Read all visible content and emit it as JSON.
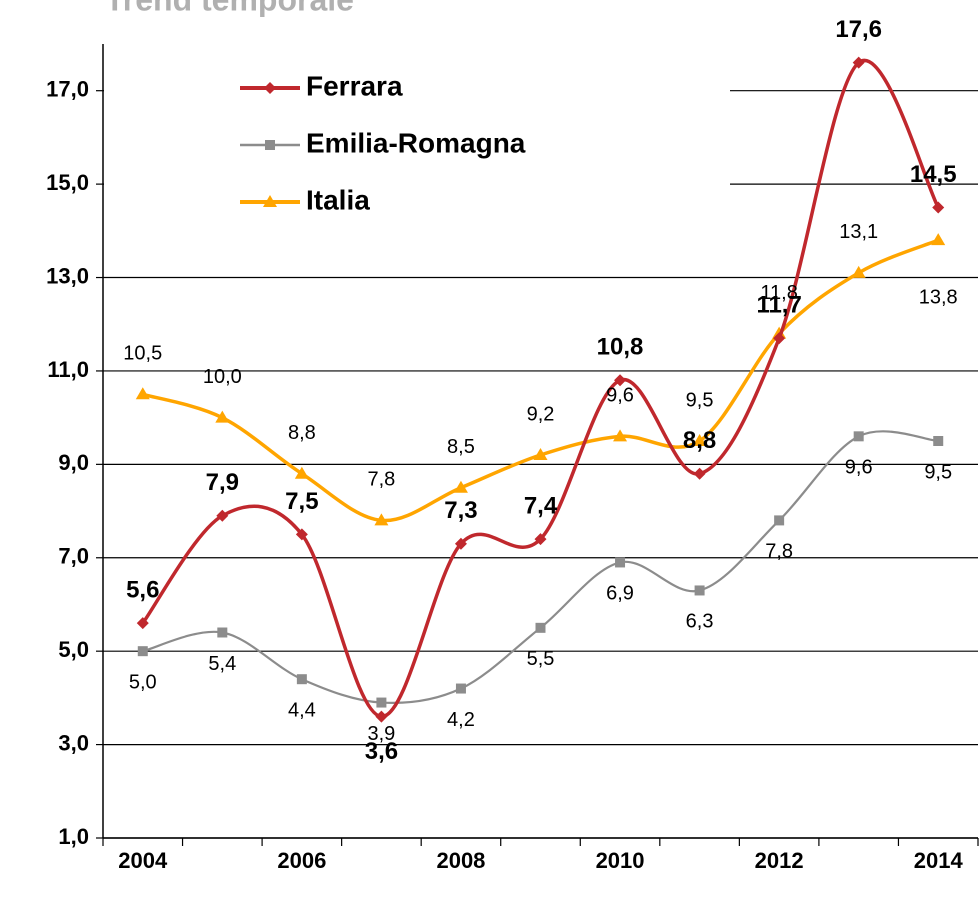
{
  "chart_data": {
    "type": "line",
    "title": "Trend temporale",
    "categories": [
      "2004",
      null,
      "2006",
      null,
      "2008",
      null,
      "2010",
      null,
      "2012",
      null,
      "2014"
    ],
    "series": [
      {
        "name": "Ferrara",
        "color": "#c0282d",
        "marker": "diamond",
        "values": [
          5.6,
          7.9,
          7.5,
          3.6,
          7.3,
          7.4,
          10.8,
          8.8,
          11.7,
          17.6,
          14.5
        ],
        "value_labels": [
          "5,6",
          "7,9",
          "7,5",
          "3,6",
          "7,3",
          "7,4",
          "10,8",
          "8,8",
          "11,7",
          "17,6",
          "14,5"
        ]
      },
      {
        "name": "Emilia-Romagna",
        "color": "#8c8c8c",
        "marker": "square",
        "values": [
          5.0,
          5.4,
          4.4,
          3.9,
          4.2,
          5.5,
          6.9,
          6.3,
          7.8,
          9.6,
          9.5
        ],
        "value_labels": [
          "5,0",
          "5,4",
          "4,4",
          "3,9",
          "4,2",
          "5,5",
          "6,9",
          "6,3",
          "7,8",
          "9,6",
          "9,5"
        ]
      },
      {
        "name": "Italia",
        "color": "#ffa500",
        "marker": "triangle",
        "values": [
          10.5,
          10.0,
          8.8,
          7.8,
          8.5,
          9.2,
          9.6,
          9.5,
          11.8,
          13.1,
          13.8
        ],
        "value_labels": [
          "10,5",
          "10,0",
          "8,8",
          "7,8",
          "8,5",
          "9,2",
          "9,6",
          "9,5",
          "11,8",
          "13,1",
          "13,8"
        ]
      }
    ],
    "ylim": [
      1,
      18
    ],
    "yticks": [
      {
        "value": 1,
        "label": "1,0"
      },
      {
        "value": 3,
        "label": "3,0"
      },
      {
        "value": 5,
        "label": "5,0"
      },
      {
        "value": 7,
        "label": "7,0"
      },
      {
        "value": 9,
        "label": "9,0"
      },
      {
        "value": 11,
        "label": "11,0"
      },
      {
        "value": 13,
        "label": "13,0"
      },
      {
        "value": 15,
        "label": "15,0"
      },
      {
        "value": 17,
        "label": "17,0"
      }
    ],
    "grid": true,
    "legend": "top-left"
  }
}
